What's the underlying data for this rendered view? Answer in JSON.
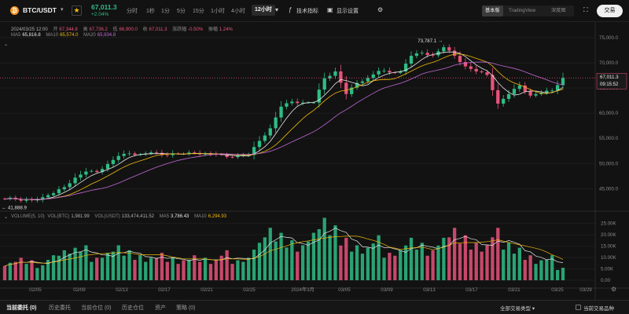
{
  "header": {
    "coin_icon": "bitcoin-icon",
    "coin_glyph": "₿",
    "symbol": "BTC/USDT",
    "favorite_icon": "star-icon",
    "last_price": "67,011.3",
    "change_pct": "+2.04%",
    "timeframes": [
      "分时",
      "1秒",
      "1分",
      "5分",
      "15分",
      "1小时",
      "4小时"
    ],
    "active_timeframe": "12小时",
    "indicators_label": "技术指标",
    "display_label": "显示设置",
    "views": [
      "基本版",
      "TradingView",
      "深度图"
    ],
    "active_view": "基本版",
    "trade_label": "交易"
  },
  "legend": {
    "date": "2024/03/25 12:00",
    "open_k": "开",
    "open": "67,344.8",
    "high_k": "高",
    "high": "67,736.2",
    "low_k": "低",
    "low": "66,900.0",
    "close_k": "收",
    "close": "67,011.3",
    "chg_k": "涨跌幅",
    "chg": "-0.50%",
    "amp_k": "振幅",
    "amp": "1.24%",
    "ma5_k": "MA5",
    "ma5": "65,816.8",
    "ma10_k": "MA10",
    "ma10": "65,574.0",
    "ma20_k": "MA20",
    "ma20": "65,934.8",
    "vol_k": "VOLUME(5, 10)",
    "volbtc_k": "VOL(BTC)",
    "volbtc": "1,981.99",
    "volusdt_k": "VOL(USDT)",
    "volusdt": "133,474,411.52",
    "vma5_k": "MA5",
    "vma5": "3,786.43",
    "vma10_k": "MA10",
    "vma10": "6,294.93"
  },
  "price_axis": [
    "75,000.0",
    "70,000.0",
    "65,000.0",
    "60,000.0",
    "55,000.0",
    "50,000.0",
    "45,000.0"
  ],
  "volume_axis": [
    "25.00K",
    "20.00K",
    "15.00K",
    "10.00K",
    "5.00K",
    "0.00"
  ],
  "date_axis": [
    "02/05",
    "02/09",
    "02/13",
    "02/17",
    "02/21",
    "02/25",
    "2024年3月",
    "03/05",
    "03/09",
    "03/13",
    "03/17",
    "03/21",
    "03/25",
    "03/29"
  ],
  "annotations": {
    "max_price": "73,787.1",
    "min_price": "41,888.9",
    "current_price": "67,011.3",
    "countdown": "09:15:52"
  },
  "colors": {
    "up": "#2ebd85",
    "down": "#e8527a",
    "ma5": "#e8e8e8",
    "ma10": "#f0b90b",
    "ma20": "#c26ad8"
  },
  "bottom_tabs": [
    "当前委托 (0)",
    "历史委托",
    "当前仓位 (0)",
    "历史仓位",
    "资产",
    "策略 (0)"
  ],
  "bottom_filter": "全部交易类型",
  "bottom_checkbox": "当前交易品种",
  "chart_data": {
    "type": "candlestick",
    "interval": "12h",
    "x_range": [
      "2024-02-02",
      "2024-03-25"
    ],
    "price_range": [
      41000,
      77500
    ],
    "volume_range": [
      0,
      28000
    ],
    "daily_close": [
      43200,
      42600,
      42700,
      43300,
      44100,
      45300,
      47200,
      48400,
      48300,
      49900,
      51500,
      52000,
      51800,
      52200,
      51700,
      52000,
      51900,
      52100,
      51900,
      51800,
      51300,
      51600,
      51700,
      54500,
      57000,
      61300,
      62300,
      62100,
      62100,
      66900,
      68300,
      63800,
      66000,
      67000,
      68400,
      68100,
      68300,
      71400,
      72000,
      71500,
      73100,
      71400,
      69300,
      68300,
      67600,
      61900,
      63800,
      65500,
      63500,
      64100,
      64500,
      67011.3
    ],
    "daily_volume_k": [
      7,
      9,
      8,
      6,
      10,
      12,
      13,
      14,
      9,
      11,
      14,
      12,
      10,
      9,
      11,
      9,
      8,
      10,
      9,
      8,
      12,
      8,
      9,
      15,
      21,
      19,
      16,
      14,
      19,
      25,
      22,
      17,
      14,
      13,
      18,
      11,
      12,
      17,
      15,
      12,
      17,
      21,
      18,
      15,
      14,
      21,
      15,
      13,
      10,
      8,
      10,
      5
    ]
  }
}
